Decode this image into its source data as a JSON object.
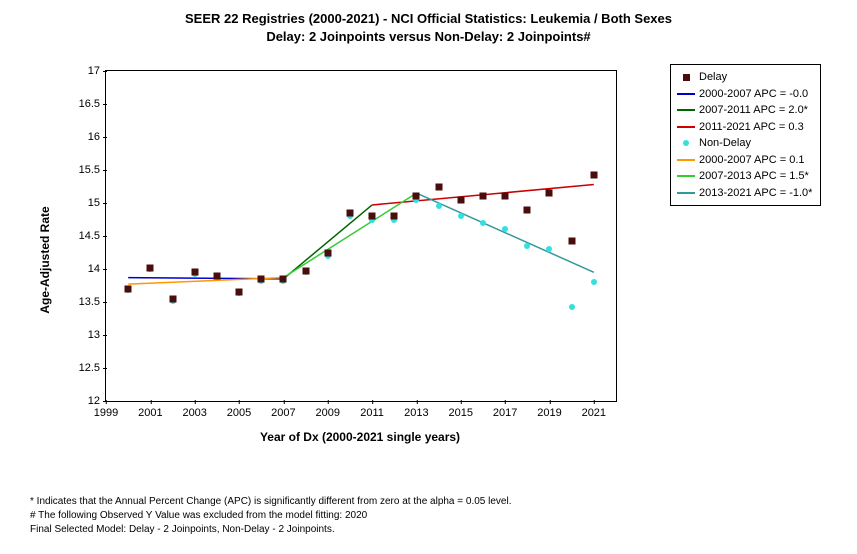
{
  "title_line1": "SEER 22 Registries (2000-2021) - NCI Official Statistics: Leukemia / Both Sexes",
  "title_line2": "Delay: 2 Joinpoints  versus  Non-Delay: 2 Joinpoints#",
  "y_axis_label": "Age-Adjusted Rate",
  "x_axis_label": "Year of Dx (2000-2021 single years)",
  "chart": {
    "xlim": [
      1999,
      2022
    ],
    "ylim": [
      12,
      17
    ],
    "x_ticks": [
      1999,
      2001,
      2003,
      2005,
      2007,
      2009,
      2011,
      2013,
      2015,
      2017,
      2019,
      2021
    ],
    "y_ticks": [
      12,
      12.5,
      13,
      13.5,
      14,
      14.5,
      15,
      15.5,
      16,
      16.5,
      17
    ],
    "background": "#ffffff",
    "border_color": "#000000",
    "marker_size_sq": 7,
    "marker_size_dot": 6,
    "line_width": 1.5
  },
  "colors": {
    "delay_marker": "#4a0d0d",
    "nondelay_marker": "#33e0e0",
    "seg_blue": "#0000cc",
    "seg_darkgreen": "#006600",
    "seg_red": "#cc0000",
    "seg_orange": "#ff9900",
    "seg_lightgreen": "#33cc33",
    "seg_teal": "#339999"
  },
  "series": {
    "delay": {
      "type": "scatter_square",
      "points": [
        [
          2000,
          13.7
        ],
        [
          2001,
          14.02
        ],
        [
          2002,
          13.54
        ],
        [
          2003,
          13.95
        ],
        [
          2004,
          13.9
        ],
        [
          2005,
          13.65
        ],
        [
          2006,
          13.85
        ],
        [
          2007,
          13.85
        ],
        [
          2008,
          13.97
        ],
        [
          2009,
          14.25
        ],
        [
          2010,
          14.85
        ],
        [
          2011,
          14.8
        ],
        [
          2012,
          14.8
        ],
        [
          2013,
          15.1
        ],
        [
          2014,
          15.25
        ],
        [
          2015,
          15.05
        ],
        [
          2016,
          15.1
        ],
        [
          2017,
          15.1
        ],
        [
          2018,
          14.9
        ],
        [
          2019,
          15.15
        ],
        [
          2020,
          14.42
        ],
        [
          2021,
          15.42
        ]
      ]
    },
    "nondelay": {
      "type": "scatter_dot",
      "points": [
        [
          2000,
          13.68
        ],
        [
          2001,
          14.0
        ],
        [
          2002,
          13.52
        ],
        [
          2003,
          13.93
        ],
        [
          2004,
          13.88
        ],
        [
          2005,
          13.63
        ],
        [
          2006,
          13.82
        ],
        [
          2007,
          13.82
        ],
        [
          2008,
          13.95
        ],
        [
          2009,
          14.2
        ],
        [
          2010,
          14.8
        ],
        [
          2011,
          14.75
        ],
        [
          2012,
          14.75
        ],
        [
          2013,
          15.05
        ],
        [
          2014,
          14.95
        ],
        [
          2015,
          14.8
        ],
        [
          2016,
          14.7
        ],
        [
          2017,
          14.6
        ],
        [
          2018,
          14.35
        ],
        [
          2019,
          14.3
        ],
        [
          2020,
          13.42
        ],
        [
          2021,
          13.8
        ]
      ]
    }
  },
  "fit_lines": {
    "delay_seg1": {
      "color_key": "seg_blue",
      "pts": [
        [
          2000,
          13.87
        ],
        [
          2007,
          13.85
        ]
      ]
    },
    "delay_seg2": {
      "color_key": "seg_darkgreen",
      "pts": [
        [
          2007,
          13.85
        ],
        [
          2011,
          14.97
        ]
      ]
    },
    "delay_seg3": {
      "color_key": "seg_red",
      "pts": [
        [
          2011,
          14.97
        ],
        [
          2021,
          15.28
        ]
      ]
    },
    "nond_seg1": {
      "color_key": "seg_orange",
      "pts": [
        [
          2000,
          13.77
        ],
        [
          2007,
          13.87
        ]
      ]
    },
    "nond_seg2": {
      "color_key": "seg_lightgreen",
      "pts": [
        [
          2007,
          13.87
        ],
        [
          2013,
          15.15
        ]
      ]
    },
    "nond_seg3": {
      "color_key": "seg_teal",
      "pts": [
        [
          2013,
          15.15
        ],
        [
          2021,
          13.95
        ]
      ]
    }
  },
  "legend": {
    "items": [
      {
        "kind": "sq",
        "color_key": "delay_marker",
        "label": "Delay"
      },
      {
        "kind": "line",
        "color_key": "seg_blue",
        "label": "2000-2007 APC  = -0.0"
      },
      {
        "kind": "line",
        "color_key": "seg_darkgreen",
        "label": "2007-2011 APC  =  2.0*"
      },
      {
        "kind": "line",
        "color_key": "seg_red",
        "label": "2011-2021 APC  =  0.3"
      },
      {
        "kind": "dot",
        "color_key": "nondelay_marker",
        "label": "Non-Delay"
      },
      {
        "kind": "line",
        "color_key": "seg_orange",
        "label": "2000-2007 APC  =  0.1"
      },
      {
        "kind": "line",
        "color_key": "seg_lightgreen",
        "label": "2007-2013 APC  =  1.5*"
      },
      {
        "kind": "line",
        "color_key": "seg_teal",
        "label": "2013-2021 APC  = -1.0*"
      }
    ]
  },
  "footnotes": {
    "f1": "* Indicates that the Annual Percent Change (APC) is significantly different from zero at the alpha = 0.05 level.",
    "f2": " # The following Observed Y Value was excluded from the model fitting:  2020",
    "f3": "Final Selected Model: Delay - 2 Joinpoints, Non-Delay - 2 Joinpoints."
  }
}
